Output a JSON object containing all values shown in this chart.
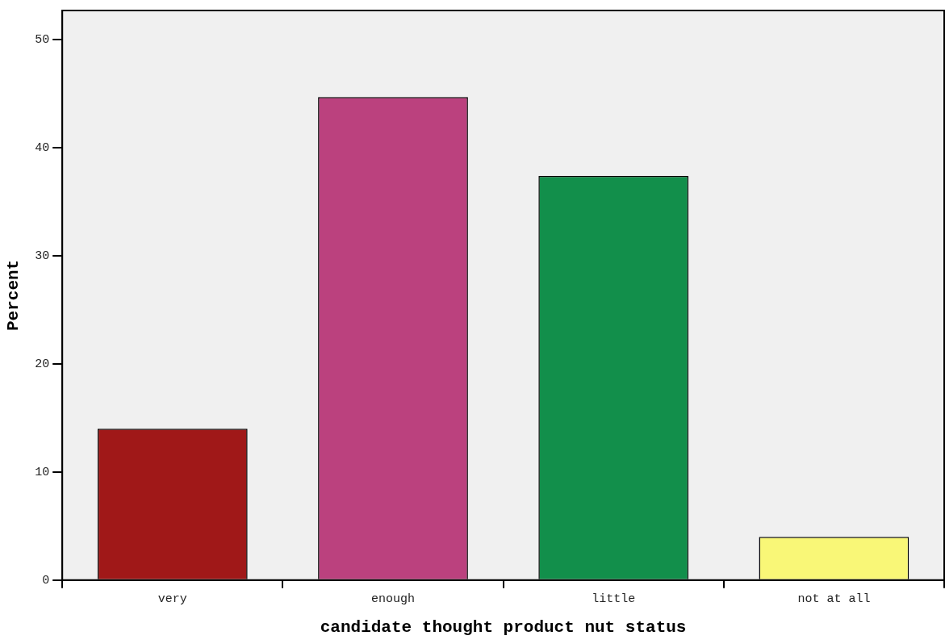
{
  "chart_data": {
    "type": "bar",
    "xlabel": "candidate thought product nut status",
    "ylabel": "Percent",
    "categories": [
      "very",
      "enough",
      "little",
      "not at all"
    ],
    "values": [
      14.0,
      44.7,
      37.4,
      4.0
    ],
    "colors": [
      "#a01818",
      "#bb417e",
      "#128f4b",
      "#f9f777"
    ],
    "ylim": [
      0,
      52.7
    ],
    "yticks": [
      0,
      10,
      20,
      30,
      40,
      50
    ],
    "grid": false
  }
}
